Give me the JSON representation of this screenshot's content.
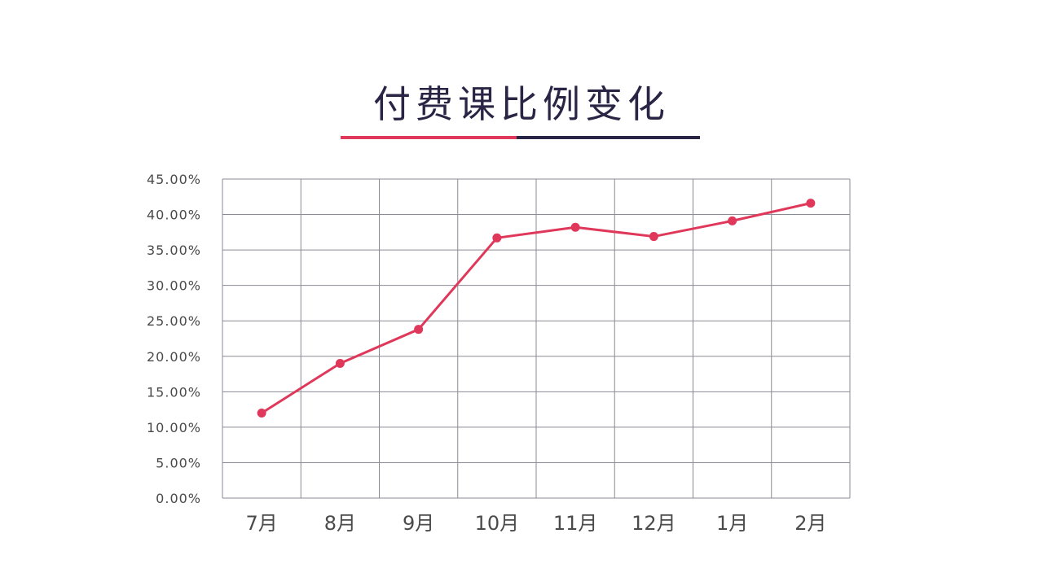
{
  "title": "付费课比例变化",
  "colors": {
    "title": "#2b2545",
    "underline_left": "#e0385a",
    "underline_right": "#2b2545",
    "series": "#e0385a",
    "grid": "#8a8a94",
    "tick_text": "#4a4a4a"
  },
  "chart_data": {
    "type": "line",
    "title": "付费课比例变化",
    "xlabel": "",
    "ylabel": "",
    "categories": [
      "7月",
      "8月",
      "9月",
      "10月",
      "11月",
      "12月",
      "1月",
      "2月"
    ],
    "series": [
      {
        "values": [
          12.0,
          19.0,
          23.8,
          36.7,
          38.2,
          36.9,
          39.1,
          41.6
        ]
      }
    ],
    "ylim": [
      0,
      45
    ],
    "yticks": [
      0,
      5,
      10,
      15,
      20,
      25,
      30,
      35,
      40,
      45
    ],
    "ytick_labels": [
      "0.00%",
      "5.00%",
      "10.00%",
      "15.00%",
      "20.00%",
      "25.00%",
      "30.00%",
      "35.00%",
      "40.00%",
      "45.00%"
    ],
    "grid": true,
    "legend": "none"
  }
}
